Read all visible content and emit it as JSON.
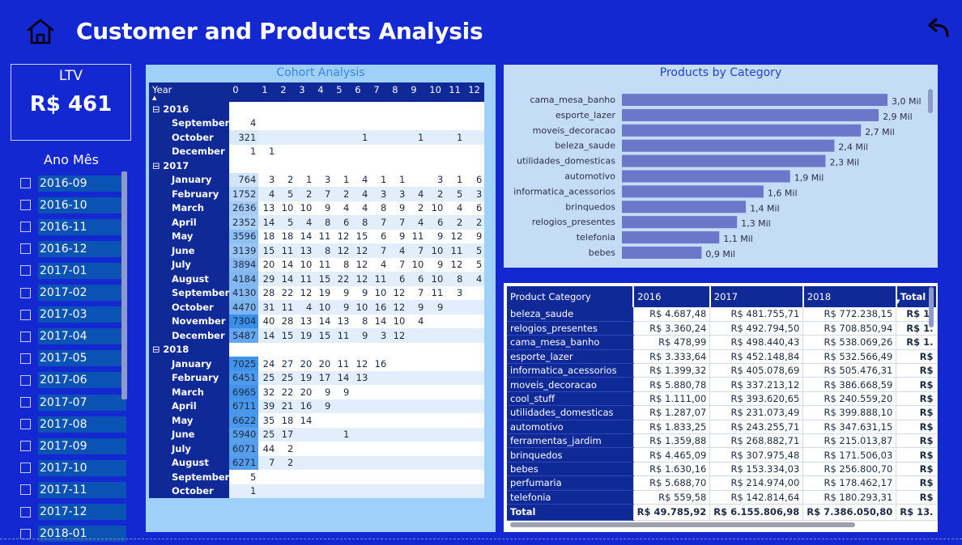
{
  "header": {
    "title": "Customer and Products Analysis",
    "home_icon": "home-icon",
    "back_icon": "back-arrow-icon"
  },
  "ltv": {
    "label": "LTV",
    "value": "R$ 461"
  },
  "slicer": {
    "title": "Ano Mês",
    "items": [
      "2016-09",
      "2016-10",
      "2016-11",
      "2016-12",
      "2017-01",
      "2017-02",
      "2017-03",
      "2017-04",
      "2017-05",
      "2017-06",
      "2017-07",
      "2017-08",
      "2017-09",
      "2017-10",
      "2017-11",
      "2017-12",
      "2018-01"
    ]
  },
  "cohort": {
    "title": "Cohort Analysis",
    "columns": [
      "Year",
      "0",
      "1",
      "2",
      "3",
      "4",
      "5",
      "6",
      "7",
      "8",
      "9",
      "10",
      "11",
      "12"
    ],
    "rows": [
      {
        "type": "group",
        "label": "2016",
        "vals": []
      },
      {
        "type": "month",
        "label": "September",
        "vals": [
          "4",
          "",
          "",
          "",
          "",
          "",
          "",
          "",
          "",
          "",
          "",
          "",
          ""
        ]
      },
      {
        "type": "month",
        "label": "October",
        "vals": [
          "321",
          "",
          "",
          "",
          "",
          "",
          "1",
          "",
          "",
          "1",
          "",
          "1",
          ""
        ]
      },
      {
        "type": "month",
        "label": "December",
        "vals": [
          "1",
          "1",
          "",
          "",
          "",
          "",
          "",
          "",
          "",
          "",
          "",
          "",
          ""
        ]
      },
      {
        "type": "group",
        "label": "2017",
        "vals": []
      },
      {
        "type": "month",
        "label": "January",
        "vals": [
          "764",
          "3",
          "2",
          "1",
          "3",
          "1",
          "4",
          "1",
          "1",
          "",
          "3",
          "1",
          "6"
        ]
      },
      {
        "type": "month",
        "label": "February",
        "vals": [
          "1752",
          "4",
          "5",
          "2",
          "7",
          "2",
          "4",
          "3",
          "3",
          "4",
          "2",
          "5",
          "3"
        ]
      },
      {
        "type": "month",
        "label": "March",
        "vals": [
          "2636",
          "13",
          "10",
          "10",
          "9",
          "4",
          "4",
          "8",
          "9",
          "2",
          "10",
          "4",
          "6"
        ]
      },
      {
        "type": "month",
        "label": "April",
        "vals": [
          "2352",
          "14",
          "5",
          "4",
          "8",
          "6",
          "8",
          "7",
          "7",
          "4",
          "6",
          "2",
          "2"
        ]
      },
      {
        "type": "month",
        "label": "May",
        "vals": [
          "3596",
          "18",
          "18",
          "14",
          "11",
          "12",
          "15",
          "6",
          "9",
          "11",
          "9",
          "12",
          "9"
        ]
      },
      {
        "type": "month",
        "label": "June",
        "vals": [
          "3139",
          "15",
          "11",
          "13",
          "8",
          "12",
          "12",
          "7",
          "4",
          "7",
          "10",
          "11",
          "5"
        ]
      },
      {
        "type": "month",
        "label": "July",
        "vals": [
          "3894",
          "20",
          "14",
          "10",
          "11",
          "8",
          "12",
          "4",
          "7",
          "10",
          "9",
          "12",
          "5"
        ]
      },
      {
        "type": "month",
        "label": "August",
        "vals": [
          "4184",
          "29",
          "14",
          "11",
          "15",
          "22",
          "12",
          "11",
          "6",
          "6",
          "10",
          "8",
          "4"
        ]
      },
      {
        "type": "month",
        "label": "September",
        "vals": [
          "4130",
          "28",
          "22",
          "12",
          "19",
          "9",
          "9",
          "10",
          "12",
          "7",
          "11",
          "3",
          ""
        ]
      },
      {
        "type": "month",
        "label": "October",
        "vals": [
          "4470",
          "31",
          "11",
          "4",
          "10",
          "9",
          "10",
          "16",
          "12",
          "9",
          "9",
          "",
          ""
        ]
      },
      {
        "type": "month",
        "label": "November",
        "vals": [
          "7304",
          "40",
          "28",
          "13",
          "14",
          "13",
          "8",
          "14",
          "10",
          "4",
          "",
          "",
          ""
        ]
      },
      {
        "type": "month",
        "label": "December",
        "vals": [
          "5487",
          "14",
          "15",
          "19",
          "15",
          "11",
          "9",
          "3",
          "12",
          "",
          "",
          "",
          ""
        ]
      },
      {
        "type": "group",
        "label": "2018",
        "vals": []
      },
      {
        "type": "month",
        "label": "January",
        "vals": [
          "7025",
          "24",
          "27",
          "20",
          "20",
          "11",
          "12",
          "16",
          "",
          "",
          "",
          "",
          ""
        ]
      },
      {
        "type": "month",
        "label": "February",
        "vals": [
          "6451",
          "25",
          "25",
          "19",
          "17",
          "14",
          "13",
          "",
          "",
          "",
          "",
          "",
          ""
        ]
      },
      {
        "type": "month",
        "label": "March",
        "vals": [
          "6965",
          "32",
          "22",
          "20",
          "9",
          "9",
          "",
          "",
          "",
          "",
          "",
          "",
          ""
        ]
      },
      {
        "type": "month",
        "label": "April",
        "vals": [
          "6711",
          "39",
          "21",
          "16",
          "9",
          "",
          "",
          "",
          "",
          "",
          "",
          "",
          ""
        ]
      },
      {
        "type": "month",
        "label": "May",
        "vals": [
          "6622",
          "35",
          "18",
          "14",
          "",
          "",
          "",
          "",
          "",
          "",
          "",
          "",
          ""
        ]
      },
      {
        "type": "month",
        "label": "June",
        "vals": [
          "5940",
          "25",
          "17",
          "",
          "",
          "1",
          "",
          "",
          "",
          "",
          "",
          "",
          ""
        ]
      },
      {
        "type": "month",
        "label": "July",
        "vals": [
          "6071",
          "44",
          "2",
          "",
          "",
          "",
          "",
          "",
          "",
          "",
          "",
          "",
          ""
        ]
      },
      {
        "type": "month",
        "label": "August",
        "vals": [
          "6271",
          "7",
          "2",
          "",
          "",
          "",
          "",
          "",
          "",
          "",
          "",
          "",
          ""
        ]
      },
      {
        "type": "month",
        "label": "September",
        "vals": [
          "5",
          "",
          "",
          "",
          "",
          "",
          "",
          "",
          "",
          "",
          "",
          "",
          ""
        ]
      },
      {
        "type": "month",
        "label": "October",
        "vals": [
          "1",
          "",
          "",
          "",
          "",
          "",
          "",
          "",
          "",
          "",
          "",
          "",
          ""
        ]
      }
    ]
  },
  "chart_data": {
    "type": "bar",
    "orientation": "horizontal",
    "title": "Products by Category",
    "categories": [
      "cama_mesa_banho",
      "esporte_lazer",
      "moveis_decoracao",
      "beleza_saude",
      "utilidades_domesticas",
      "automotivo",
      "informatica_acessorios",
      "brinquedos",
      "relogios_presentes",
      "telefonia",
      "bebes"
    ],
    "values": [
      3.0,
      2.9,
      2.7,
      2.4,
      2.3,
      1.9,
      1.6,
      1.4,
      1.3,
      1.1,
      0.9
    ],
    "value_labels": [
      "3,0 Mil",
      "2,9 Mil",
      "2,7 Mil",
      "2,4 Mil",
      "2,3 Mil",
      "1,9 Mil",
      "1,6 Mil",
      "1,4 Mil",
      "1,3 Mil",
      "1,1 Mil",
      "0,9 Mil"
    ],
    "xlim": [
      0,
      3.0
    ],
    "unit": "Mil",
    "bar_color": "#6b78c9",
    "grid": false,
    "legend": "none"
  },
  "matrix": {
    "columns": [
      "Product Category",
      "2016",
      "2017",
      "2018",
      "Total"
    ],
    "rows": [
      [
        "beleza_saude",
        "R$ 4.687,48",
        "R$ 481.755,71",
        "R$ 772.238,15",
        "R$ 1."
      ],
      [
        "relogios_presentes",
        "R$ 3.360,24",
        "R$ 492.794,50",
        "R$ 708.850,94",
        "R$ 1."
      ],
      [
        "cama_mesa_banho",
        "R$ 478,99",
        "R$ 498.440,43",
        "R$ 538.069,26",
        "R$ 1."
      ],
      [
        "esporte_lazer",
        "R$ 3.333,64",
        "R$ 452.148,84",
        "R$ 532.566,49",
        "R$"
      ],
      [
        "informatica_acessorios",
        "R$ 1.399,32",
        "R$ 405.078,69",
        "R$ 505.476,31",
        "R$"
      ],
      [
        "moveis_decoracao",
        "R$ 5.880,78",
        "R$ 337.213,12",
        "R$ 386.668,59",
        "R$"
      ],
      [
        "cool_stuff",
        "R$ 1.111,00",
        "R$ 393.620,65",
        "R$ 240.559,20",
        "R$"
      ],
      [
        "utilidades_domesticas",
        "R$ 1.287,07",
        "R$ 231.073,49",
        "R$ 399.888,10",
        "R$"
      ],
      [
        "automotivo",
        "R$ 1.833,25",
        "R$ 243.255,71",
        "R$ 347.631,15",
        "R$"
      ],
      [
        "ferramentas_jardim",
        "R$ 1.359,88",
        "R$ 268.882,71",
        "R$ 215.013,87",
        "R$"
      ],
      [
        "brinquedos",
        "R$ 4.465,09",
        "R$ 307.975,48",
        "R$ 171.506,03",
        "R$"
      ],
      [
        "bebes",
        "R$ 1.630,16",
        "R$ 153.334,03",
        "R$ 256.800,70",
        "R$"
      ],
      [
        "perfumaria",
        "R$ 5.688,70",
        "R$ 214.974,00",
        "R$ 178.462,17",
        "R$"
      ],
      [
        "telefonia",
        "R$ 559,58",
        "R$ 142.814,64",
        "R$ 180.293,31",
        "R$"
      ]
    ],
    "total": [
      "Total",
      "R$ 49.785,92",
      "R$ 6.155.806,98",
      "R$ 7.386.050,80",
      "R$ 13."
    ]
  },
  "colors": {
    "background": "#1428d2",
    "cohort_panel": "#9ed0fa",
    "chart_panel": "#c5dcf6",
    "header_cell": "#0f2a96",
    "heat": "#3b8fe8"
  }
}
